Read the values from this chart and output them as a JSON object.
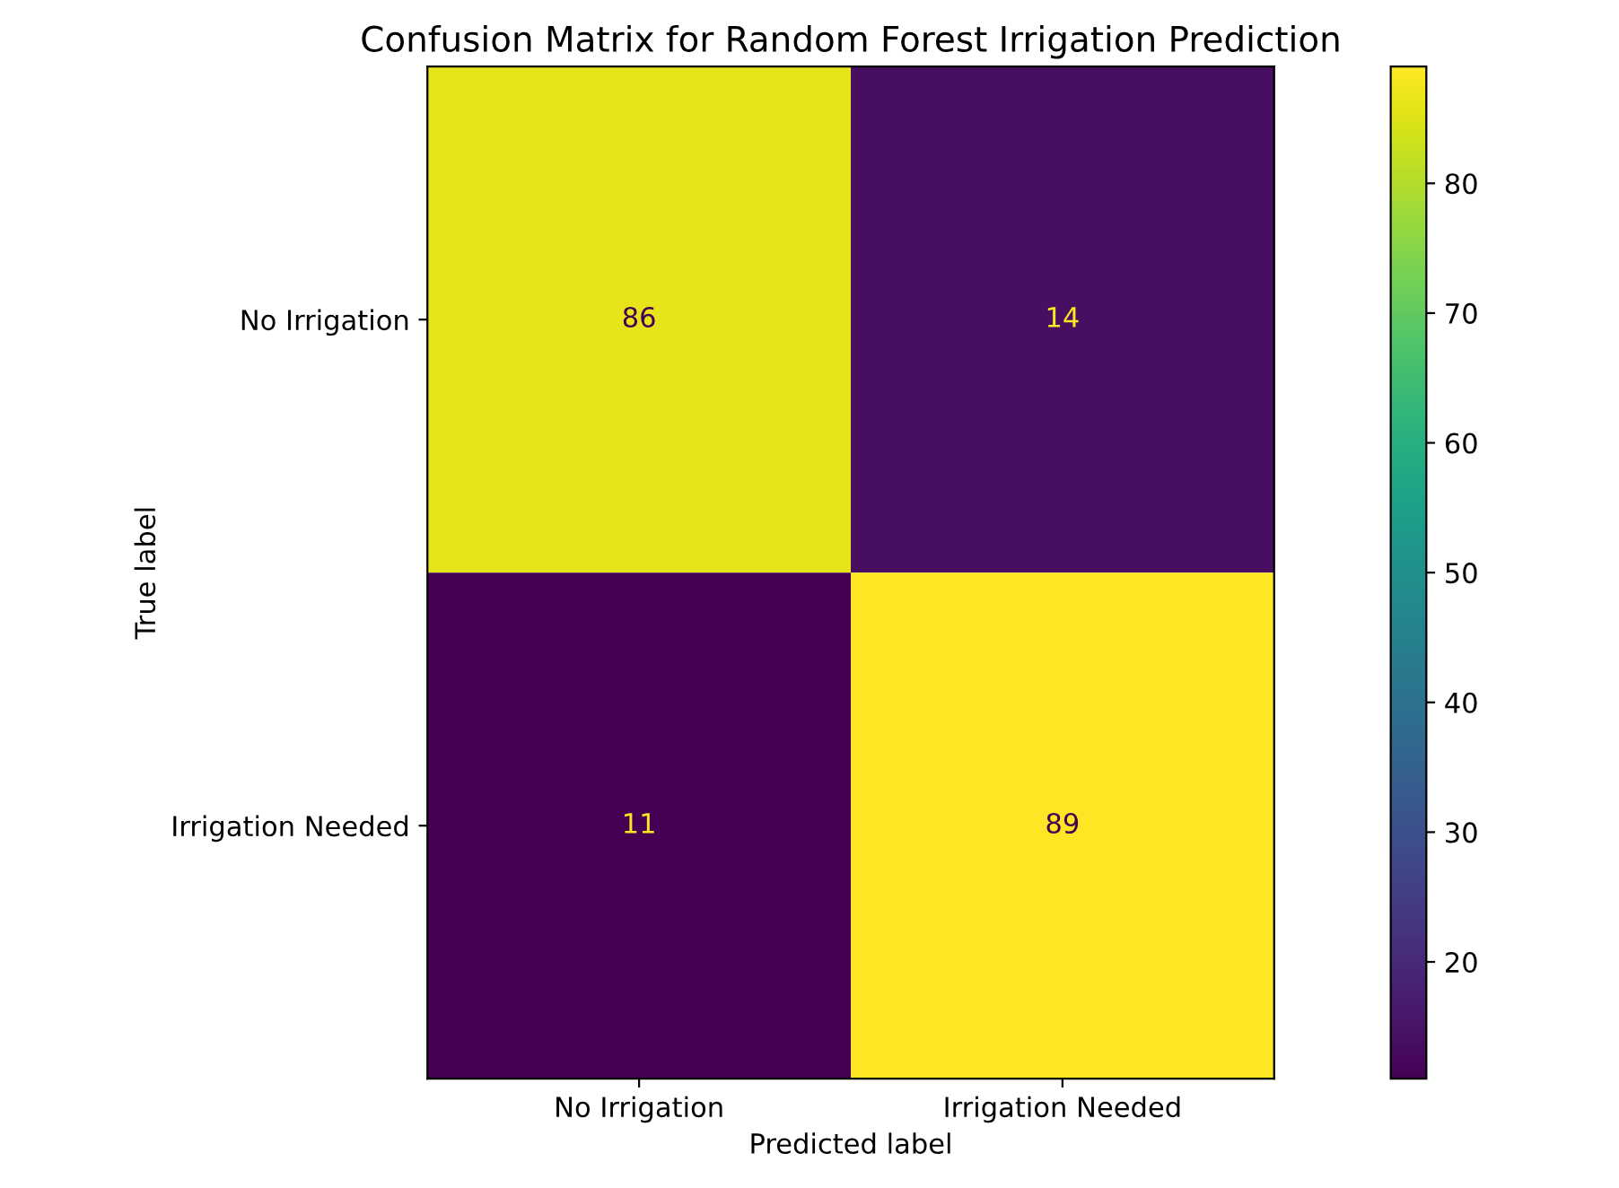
{
  "chart_data": {
    "type": "heatmap",
    "title": "Confusion Matrix for Random Forest Irrigation Prediction",
    "xlabel": "Predicted label",
    "ylabel": "True label",
    "categories": [
      "No Irrigation",
      "Irrigation Needed"
    ],
    "y_categories": [
      "No Irrigation",
      "Irrigation Needed"
    ],
    "cells": [
      [
        86,
        14
      ],
      [
        11,
        89
      ]
    ],
    "clim": [
      11,
      89
    ],
    "cticks": [
      20,
      30,
      40,
      50,
      60,
      70,
      80
    ],
    "data_labels": true
  }
}
